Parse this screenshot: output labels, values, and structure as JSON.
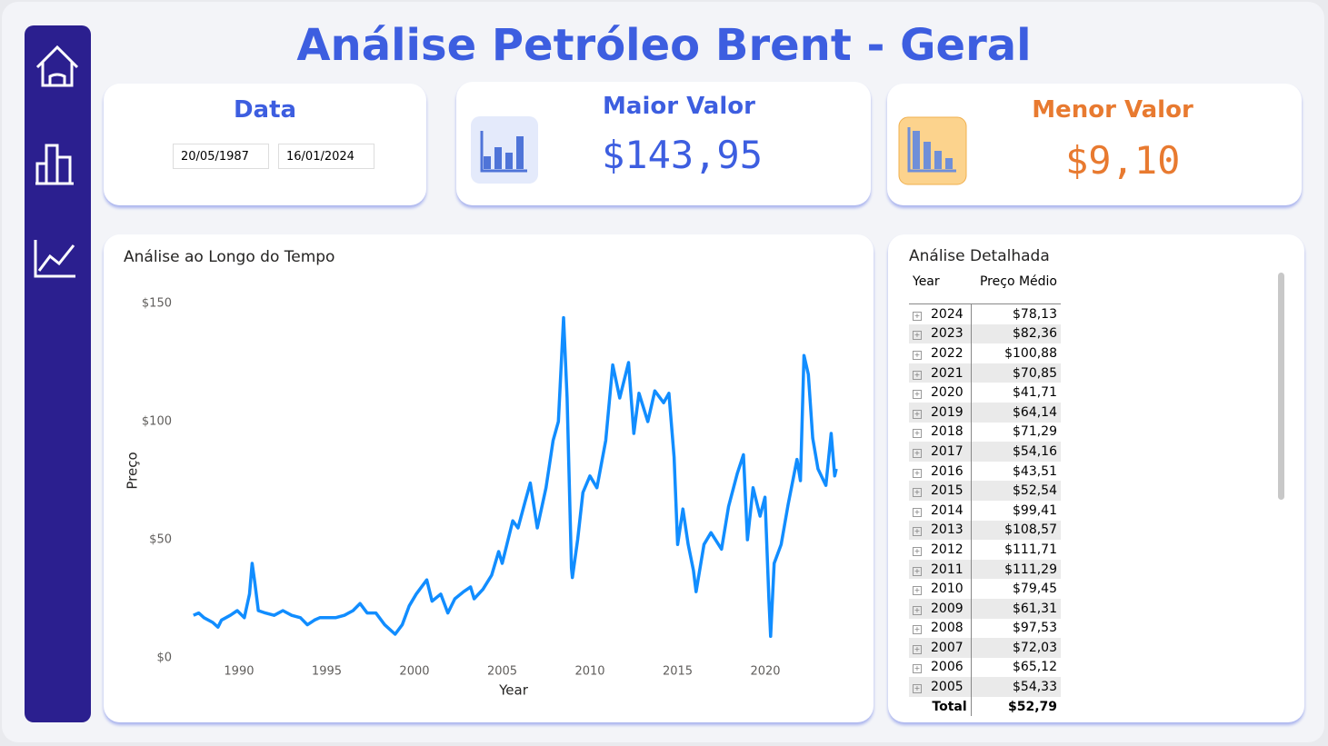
{
  "header": {
    "title": "Análise Petróleo Brent - Geral"
  },
  "date_filter": {
    "label": "Data",
    "start": "20/05/1987",
    "end": "16/01/2024"
  },
  "max_card": {
    "label": "Maior Valor",
    "value": "$143,95"
  },
  "min_card": {
    "label": "Menor Valor",
    "value": "$9,10"
  },
  "chart_data": {
    "type": "line",
    "title": "Análise ao Longo do Tempo",
    "x_label": "Year",
    "y_label": "Preço",
    "x": [
      1987.4,
      1987.7,
      1988.0,
      1988.5,
      1988.8,
      1989.0,
      1989.5,
      1989.9,
      1990.3,
      1990.6,
      1990.75,
      1990.9,
      1991.1,
      1991.5,
      1992.0,
      1992.5,
      1993.0,
      1993.5,
      1993.9,
      1994.3,
      1994.6,
      1995.0,
      1995.5,
      1996.0,
      1996.5,
      1996.9,
      1997.3,
      1997.8,
      1998.3,
      1998.9,
      1999.3,
      1999.7,
      2000.1,
      2000.7,
      2001.0,
      2001.5,
      2001.9,
      2002.3,
      2002.8,
      2003.2,
      2003.4,
      2003.9,
      2004.4,
      2004.8,
      2005.0,
      2005.6,
      2005.9,
      2006.3,
      2006.6,
      2007.0,
      2007.5,
      2007.9,
      2008.2,
      2008.5,
      2008.7,
      2008.95,
      2009.0,
      2009.3,
      2009.6,
      2010.0,
      2010.4,
      2010.9,
      2011.3,
      2011.7,
      2012.2,
      2012.5,
      2012.8,
      2013.3,
      2013.7,
      2014.2,
      2014.5,
      2014.8,
      2015.0,
      2015.3,
      2015.6,
      2015.9,
      2016.05,
      2016.5,
      2016.9,
      2017.5,
      2017.9,
      2018.4,
      2018.75,
      2018.98,
      2019.3,
      2019.7,
      2019.98,
      2020.2,
      2020.3,
      2020.5,
      2020.9,
      2021.3,
      2021.8,
      2022.0,
      2022.2,
      2022.45,
      2022.7,
      2023.0,
      2023.45,
      2023.75,
      2023.95,
      2024.04
    ],
    "series": [
      {
        "name": "Preço",
        "color": "#118dff",
        "values": [
          18,
          19,
          17,
          15,
          13,
          16,
          18,
          20,
          17,
          27,
          40,
          32,
          20,
          19,
          18,
          20,
          18,
          17,
          14,
          16,
          17,
          17,
          17,
          18,
          20,
          23,
          19,
          19,
          14,
          10,
          14,
          22,
          27,
          33,
          24,
          27,
          19,
          25,
          28,
          30,
          25,
          29,
          35,
          45,
          40,
          58,
          55,
          66,
          74,
          55,
          72,
          92,
          100,
          144,
          110,
          38,
          34,
          50,
          70,
          77,
          72,
          92,
          124,
          110,
          125,
          95,
          112,
          100,
          113,
          108,
          112,
          85,
          48,
          63,
          48,
          37,
          28,
          48,
          53,
          46,
          64,
          78,
          86,
          50,
          72,
          60,
          68,
          25,
          9.1,
          40,
          48,
          65,
          84,
          75,
          128,
          120,
          93,
          80,
          73,
          95,
          77,
          80
        ]
      }
    ],
    "xlim": [
      1986.8,
      2024.6
    ],
    "xticks": [
      1990,
      1995,
      2000,
      2005,
      2010,
      2015,
      2020
    ],
    "ylim": [
      0,
      150
    ],
    "yticks": [
      {
        "value": 0,
        "label": "$0"
      },
      {
        "value": 50,
        "label": "$50"
      },
      {
        "value": 100,
        "label": "$100"
      },
      {
        "value": 150,
        "label": "$150"
      }
    ]
  },
  "table": {
    "title": "Análise Detalhada",
    "columns": [
      "Year",
      "Preço Médio"
    ],
    "rows": [
      [
        2024,
        "$78,13"
      ],
      [
        2023,
        "$82,36"
      ],
      [
        2022,
        "$100,88"
      ],
      [
        2021,
        "$70,85"
      ],
      [
        2020,
        "$41,71"
      ],
      [
        2019,
        "$64,14"
      ],
      [
        2018,
        "$71,29"
      ],
      [
        2017,
        "$54,16"
      ],
      [
        2016,
        "$43,51"
      ],
      [
        2015,
        "$52,54"
      ],
      [
        2014,
        "$99,41"
      ],
      [
        2013,
        "$108,57"
      ],
      [
        2012,
        "$111,71"
      ],
      [
        2011,
        "$111,29"
      ],
      [
        2010,
        "$79,45"
      ],
      [
        2009,
        "$61,31"
      ],
      [
        2008,
        "$97,53"
      ],
      [
        2007,
        "$72,03"
      ],
      [
        2006,
        "$65,12"
      ],
      [
        2005,
        "$54,33"
      ]
    ],
    "total": [
      "Total",
      "$52,79"
    ]
  }
}
